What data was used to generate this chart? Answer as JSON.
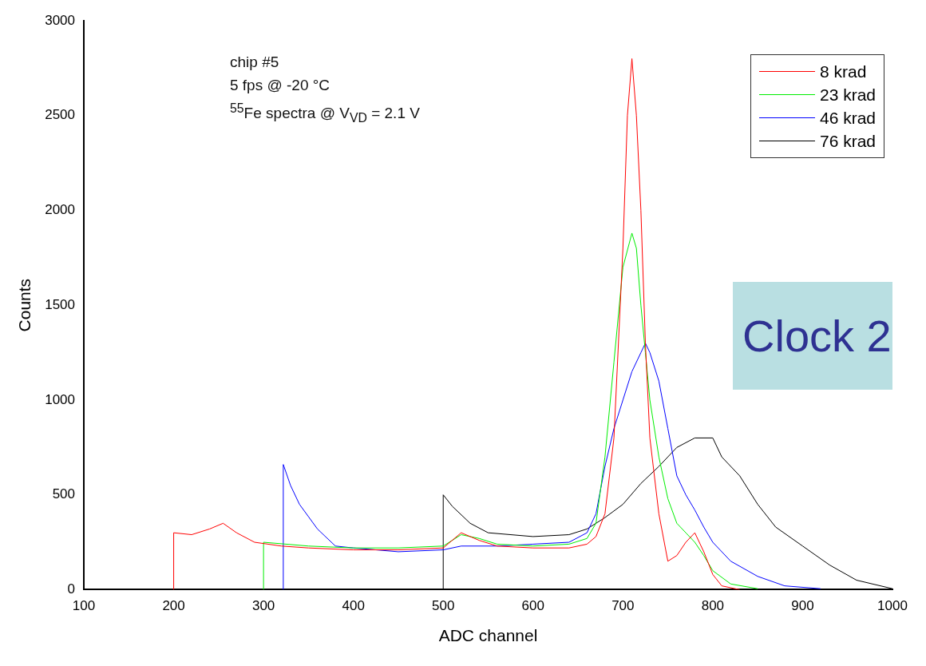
{
  "chart_data": {
    "type": "line",
    "xlabel": "ADC channel",
    "ylabel": "Counts",
    "xlim": [
      100,
      1000
    ],
    "xticks": [
      100,
      200,
      300,
      400,
      500,
      600,
      700,
      800,
      900,
      1000
    ],
    "ylim": [
      0,
      3000
    ],
    "yticks": [
      0,
      500,
      1000,
      1500,
      2000,
      2500,
      3000
    ],
    "grid": false,
    "legend": "top right",
    "marker": "none",
    "line_style": "solid",
    "annotations": [
      "chip #5",
      "5 fps @ -20 °C",
      "$^{55}$Fe spectra @ V$_{VD}$ = 2.1 V",
      "Clock 2"
    ],
    "series": [
      {
        "name": "8 krad",
        "color": "#ff0000",
        "x": [
          200,
          200,
          220,
          240,
          255,
          270,
          290,
          320,
          350,
          400,
          450,
          500,
          520,
          540,
          560,
          600,
          640,
          660,
          670,
          680,
          690,
          700,
          705,
          710,
          715,
          720,
          725,
          730,
          740,
          750,
          760,
          770,
          780,
          790,
          800,
          810,
          830
        ],
        "values": [
          0,
          300,
          290,
          320,
          350,
          300,
          250,
          230,
          220,
          210,
          210,
          220,
          300,
          260,
          230,
          220,
          220,
          240,
          280,
          400,
          800,
          1800,
          2500,
          2800,
          2500,
          2000,
          1300,
          800,
          400,
          150,
          180,
          250,
          300,
          200,
          80,
          20,
          0
        ]
      },
      {
        "name": "23 krad",
        "color": "#00ee00",
        "x": [
          300,
          300,
          350,
          400,
          450,
          500,
          520,
          540,
          560,
          600,
          640,
          660,
          670,
          680,
          690,
          700,
          710,
          715,
          720,
          725,
          730,
          740,
          750,
          760,
          770,
          780,
          790,
          800,
          820,
          850
        ],
        "values": [
          0,
          250,
          230,
          220,
          220,
          230,
          290,
          270,
          240,
          230,
          240,
          270,
          350,
          700,
          1200,
          1700,
          1880,
          1800,
          1500,
          1250,
          1000,
          700,
          480,
          350,
          300,
          250,
          180,
          100,
          30,
          5
        ]
      },
      {
        "name": "46 krad",
        "color": "#0000ff",
        "x": [
          322,
          322,
          330,
          340,
          360,
          380,
          400,
          450,
          500,
          520,
          560,
          600,
          640,
          660,
          670,
          680,
          690,
          700,
          710,
          720,
          725,
          730,
          740,
          750,
          760,
          770,
          780,
          790,
          800,
          820,
          850,
          880,
          920
        ],
        "values": [
          0,
          660,
          550,
          450,
          320,
          230,
          220,
          200,
          210,
          230,
          230,
          240,
          250,
          300,
          400,
          650,
          850,
          1000,
          1150,
          1250,
          1300,
          1250,
          1100,
          850,
          600,
          500,
          420,
          330,
          250,
          150,
          70,
          20,
          5
        ]
      },
      {
        "name": "76 krad",
        "color": "#000000",
        "x": [
          500,
          500,
          510,
          530,
          550,
          600,
          640,
          660,
          680,
          700,
          720,
          740,
          760,
          780,
          800,
          810,
          830,
          850,
          870,
          900,
          930,
          960,
          1000
        ],
        "values": [
          0,
          500,
          440,
          350,
          300,
          280,
          290,
          320,
          380,
          450,
          560,
          650,
          750,
          800,
          800,
          700,
          600,
          450,
          330,
          230,
          130,
          50,
          5
        ]
      }
    ]
  }
}
